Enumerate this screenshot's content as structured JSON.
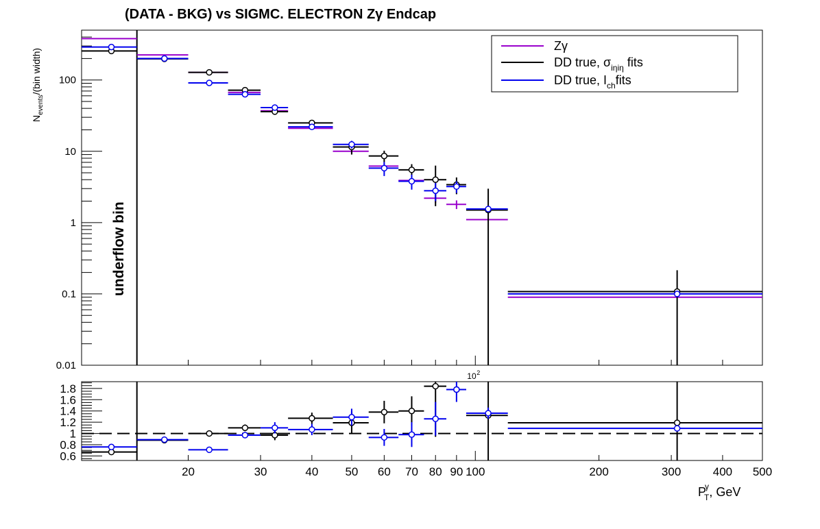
{
  "chart_data": {
    "type": "scatter",
    "title": "(DATA - BKG) vs SIGMC. ELECTRON Zγ  Endcap",
    "xlabel": {
      "main": "P",
      "sup": "γ",
      "sub": "T",
      "tail": ", GeV"
    },
    "ylabel": {
      "main": "N",
      "sub": "events",
      "tail": "/(bin width)"
    },
    "x_scale": "log",
    "xlim": [
      11,
      500
    ],
    "upper_ylim": [
      0.01,
      500
    ],
    "upper_y_scale": "log",
    "lower_ylim": [
      0.52,
      1.92
    ],
    "underflow_text": "underflow bin",
    "upper_y_ticks": [
      {
        "v": 0.01,
        "label": "0.01"
      },
      {
        "v": 0.1,
        "label": "0.1"
      },
      {
        "v": 1,
        "label": "1"
      },
      {
        "v": 10,
        "label": "10"
      },
      {
        "v": 100,
        "label": "100"
      }
    ],
    "lower_y_ticks": [
      {
        "v": 0.6,
        "label": "0.6"
      },
      {
        "v": 0.8,
        "label": "0.8"
      },
      {
        "v": 1.0,
        "label": "1"
      },
      {
        "v": 1.2,
        "label": "1.2"
      },
      {
        "v": 1.4,
        "label": "1.4"
      },
      {
        "v": 1.6,
        "label": "1.6"
      },
      {
        "v": 1.8,
        "label": "1.8"
      }
    ],
    "x_ticks": [
      {
        "v": 20,
        "label": "20"
      },
      {
        "v": 30,
        "label": "30"
      },
      {
        "v": 40,
        "label": "40"
      },
      {
        "v": 50,
        "label": "50"
      },
      {
        "v": 60,
        "label": "60"
      },
      {
        "v": 70,
        "label": "70"
      },
      {
        "v": 80,
        "label": "80"
      },
      {
        "v": 90,
        "label": "90"
      },
      {
        "v": 100,
        "label": "100"
      },
      {
        "v": 200,
        "label": "200"
      },
      {
        "v": 300,
        "label": "300"
      },
      {
        "v": 400,
        "label": "400"
      },
      {
        "v": 500,
        "label": "500"
      }
    ],
    "x_exponent_label": {
      "base": "10",
      "exp": "2"
    },
    "underflow_edge": 15,
    "legend": [
      {
        "key": "zg",
        "label": "Zγ",
        "color": "#9900cc"
      },
      {
        "key": "sieie",
        "label": "DD true,  σ",
        "sub": "iηiη",
        "tail": " fits",
        "color": "#000000"
      },
      {
        "key": "ich",
        "label": "DD true, I",
        "sub": "ch",
        "tail": "fits",
        "color": "#0000ee"
      }
    ],
    "series": [
      {
        "name": "Zγ",
        "key": "zg",
        "color": "#9900cc",
        "markers": false,
        "points": [
          {
            "xlo": 11,
            "xhi": 15,
            "x": 13,
            "y": 380,
            "err": 0
          },
          {
            "xlo": 15,
            "xhi": 20,
            "x": 17.5,
            "y": 225,
            "err": 0
          },
          {
            "xlo": 20,
            "xhi": 25,
            "x": 22.5,
            "y": 128,
            "err": 0
          },
          {
            "xlo": 25,
            "xhi": 30,
            "x": 27.5,
            "y": 67,
            "err": 0
          },
          {
            "xlo": 30,
            "xhi": 35,
            "x": 32.5,
            "y": 37,
            "err": 0
          },
          {
            "xlo": 35,
            "xhi": 45,
            "x": 40,
            "y": 21,
            "err": 0
          },
          {
            "xlo": 45,
            "xhi": 55,
            "x": 50,
            "y": 10,
            "err": 0.9
          },
          {
            "xlo": 55,
            "xhi": 65,
            "x": 60,
            "y": 6.2,
            "err": 0.6
          },
          {
            "xlo": 65,
            "xhi": 75,
            "x": 70,
            "y": 3.9,
            "err": 0.4
          },
          {
            "xlo": 75,
            "xhi": 85,
            "x": 80,
            "y": 2.2,
            "err": 0.3
          },
          {
            "xlo": 85,
            "xhi": 95,
            "x": 90,
            "y": 1.8,
            "err": 0.25
          },
          {
            "xlo": 95,
            "xhi": 120,
            "x": 107.5,
            "y": 1.1,
            "err": 0
          },
          {
            "xlo": 120,
            "xhi": 500,
            "x": 310,
            "y": 0.09,
            "err": 0
          }
        ]
      },
      {
        "name": "DD true,  σ iηiη fits",
        "key": "sieie",
        "color": "#000000",
        "markers": true,
        "points": [
          {
            "xlo": 11,
            "xhi": 15,
            "x": 13,
            "y": 255,
            "err": 0
          },
          {
            "xlo": 15,
            "xhi": 20,
            "x": 17.5,
            "y": 198,
            "err": 0
          },
          {
            "xlo": 20,
            "xhi": 25,
            "x": 22.5,
            "y": 128,
            "err": 0
          },
          {
            "xlo": 25,
            "xhi": 30,
            "x": 27.5,
            "y": 72,
            "err": 0
          },
          {
            "xlo": 30,
            "xhi": 35,
            "x": 32.5,
            "y": 36,
            "err": 3.5
          },
          {
            "xlo": 35,
            "xhi": 45,
            "x": 40,
            "y": 25,
            "err": 2.5
          },
          {
            "xlo": 45,
            "xhi": 55,
            "x": 50,
            "y": 11.5,
            "err": 2.5
          },
          {
            "xlo": 55,
            "xhi": 65,
            "x": 60,
            "y": 8.6,
            "err": 1.6
          },
          {
            "xlo": 65,
            "xhi": 75,
            "x": 70,
            "y": 5.5,
            "err": 1.1
          },
          {
            "xlo": 75,
            "xhi": 85,
            "x": 80,
            "y": 4.0,
            "err": 2.3
          },
          {
            "xlo": 85,
            "xhi": 95,
            "x": 90,
            "y": 3.4,
            "err": 0.9
          },
          {
            "xlo": 95,
            "xhi": 120,
            "x": 107.5,
            "y": 1.5,
            "err": 1.49
          },
          {
            "xlo": 120,
            "xhi": 500,
            "x": 310,
            "y": 0.108,
            "err": 0.107
          }
        ]
      },
      {
        "name": "DD true, I ch fits",
        "key": "ich",
        "color": "#0000ee",
        "markers": true,
        "points": [
          {
            "xlo": 11,
            "xhi": 15,
            "x": 13,
            "y": 290,
            "err": 0
          },
          {
            "xlo": 15,
            "xhi": 20,
            "x": 17.5,
            "y": 200,
            "err": 0
          },
          {
            "xlo": 20,
            "xhi": 25,
            "x": 22.5,
            "y": 91,
            "err": 0
          },
          {
            "xlo": 25,
            "xhi": 30,
            "x": 27.5,
            "y": 63,
            "err": 0
          },
          {
            "xlo": 30,
            "xhi": 35,
            "x": 32.5,
            "y": 41,
            "err": 3
          },
          {
            "xlo": 35,
            "xhi": 45,
            "x": 40,
            "y": 22,
            "err": 0
          },
          {
            "xlo": 45,
            "xhi": 55,
            "x": 50,
            "y": 12.5,
            "err": 1.5
          },
          {
            "xlo": 55,
            "xhi": 65,
            "x": 60,
            "y": 5.8,
            "err": 1.3
          },
          {
            "xlo": 65,
            "xhi": 75,
            "x": 70,
            "y": 3.8,
            "err": 0.9
          },
          {
            "xlo": 75,
            "xhi": 85,
            "x": 80,
            "y": 2.8,
            "err": 0.8
          },
          {
            "xlo": 85,
            "xhi": 95,
            "x": 90,
            "y": 3.2,
            "err": 0.6
          },
          {
            "xlo": 95,
            "xhi": 120,
            "x": 107.5,
            "y": 1.55,
            "err": 0
          },
          {
            "xlo": 120,
            "xhi": 500,
            "x": 310,
            "y": 0.1,
            "err": 0
          }
        ]
      }
    ],
    "ratio_series": [
      {
        "key": "sieie",
        "color": "#000000",
        "points": [
          {
            "xlo": 11,
            "xhi": 15,
            "x": 13,
            "y": 0.67,
            "err": 0
          },
          {
            "xlo": 15,
            "xhi": 20,
            "x": 17.5,
            "y": 0.88,
            "err": 0
          },
          {
            "xlo": 20,
            "xhi": 25,
            "x": 22.5,
            "y": 1.0,
            "err": 0
          },
          {
            "xlo": 25,
            "xhi": 30,
            "x": 27.5,
            "y": 1.1,
            "err": 0.06
          },
          {
            "xlo": 30,
            "xhi": 35,
            "x": 32.5,
            "y": 0.97,
            "err": 0.09
          },
          {
            "xlo": 35,
            "xhi": 45,
            "x": 40,
            "y": 1.27,
            "err": 0.1
          },
          {
            "xlo": 45,
            "xhi": 55,
            "x": 50,
            "y": 1.19,
            "err": 0.2
          },
          {
            "xlo": 55,
            "xhi": 65,
            "x": 60,
            "y": 1.38,
            "err": 0.2
          },
          {
            "xlo": 65,
            "xhi": 75,
            "x": 70,
            "y": 1.4,
            "err": 0.26
          },
          {
            "xlo": 75,
            "xhi": 85,
            "x": 80,
            "y": 1.84,
            "err": 0.9
          },
          {
            "xlo": 85,
            "xhi": 95,
            "x": 90,
            "y": 1.78,
            "err": 0
          },
          {
            "xlo": 95,
            "xhi": 120,
            "x": 107.5,
            "y": 1.32,
            "err": 2.0
          },
          {
            "xlo": 120,
            "xhi": 500,
            "x": 310,
            "y": 1.19,
            "err": 2.0
          }
        ]
      },
      {
        "key": "ich",
        "color": "#0000ee",
        "points": [
          {
            "xlo": 11,
            "xhi": 15,
            "x": 13,
            "y": 0.76,
            "err": 0
          },
          {
            "xlo": 15,
            "xhi": 20,
            "x": 17.5,
            "y": 0.89,
            "err": 0
          },
          {
            "xlo": 20,
            "xhi": 25,
            "x": 22.5,
            "y": 0.71,
            "err": 0
          },
          {
            "xlo": 25,
            "xhi": 30,
            "x": 27.5,
            "y": 0.97,
            "err": 0.05
          },
          {
            "xlo": 30,
            "xhi": 35,
            "x": 32.5,
            "y": 1.1,
            "err": 0.1
          },
          {
            "xlo": 35,
            "xhi": 45,
            "x": 40,
            "y": 1.07,
            "err": 0.1
          },
          {
            "xlo": 45,
            "xhi": 55,
            "x": 50,
            "y": 1.29,
            "err": 0.15
          },
          {
            "xlo": 55,
            "xhi": 65,
            "x": 60,
            "y": 0.93,
            "err": 0.15
          },
          {
            "xlo": 65,
            "xhi": 75,
            "x": 70,
            "y": 0.98,
            "err": 0.22
          },
          {
            "xlo": 75,
            "xhi": 85,
            "x": 80,
            "y": 1.26,
            "err": 0.3
          },
          {
            "xlo": 85,
            "xhi": 95,
            "x": 90,
            "y": 1.78,
            "err": 0.22
          },
          {
            "xlo": 95,
            "xhi": 120,
            "x": 107.5,
            "y": 1.36,
            "err": 0.1
          },
          {
            "xlo": 120,
            "xhi": 500,
            "x": 310,
            "y": 1.09,
            "err": 0
          }
        ]
      }
    ]
  }
}
